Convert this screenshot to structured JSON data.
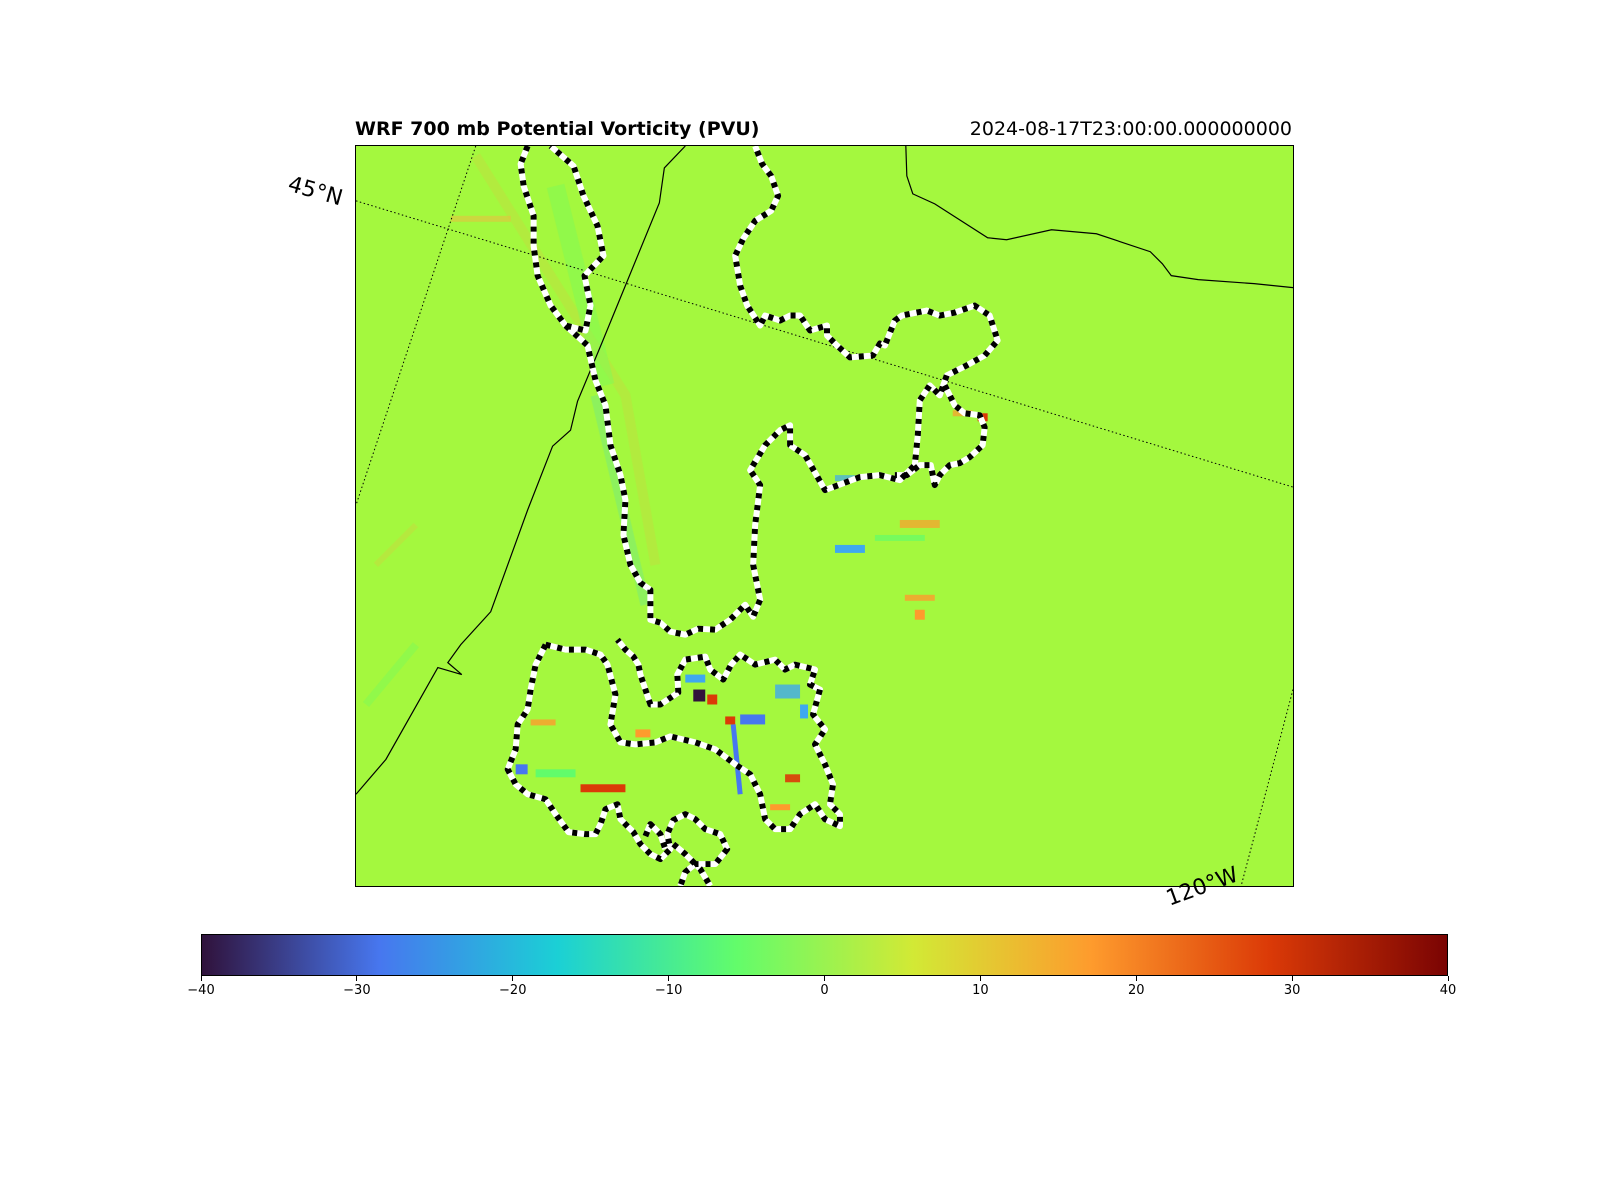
{
  "figure": {
    "title": "WRF 700 mb Potential Vorticity (PVU)",
    "timestamp": "2024-08-17T23:00:00.000000000"
  },
  "map": {
    "latitude_label": "45°N",
    "longitude_label": "120°W",
    "background_color": "#a4f83e",
    "boundary_line_color": "#000000",
    "gridline_style": "dotted",
    "highlight_outline_style": "black-white dashed"
  },
  "colorbar": {
    "colormap": "turbo",
    "min": -40,
    "max": 40,
    "tick_labels": [
      "−40",
      "−30",
      "−20",
      "−10",
      "0",
      "10",
      "20",
      "30",
      "40"
    ],
    "tick_values": [
      -40,
      -30,
      -20,
      -10,
      0,
      10,
      20,
      30,
      40
    ],
    "colors": [
      "#30123b",
      "#4777ef",
      "#1bd0d5",
      "#62fc6b",
      "#d2e935",
      "#fe9b2d",
      "#db3a07",
      "#7a0403"
    ]
  }
}
